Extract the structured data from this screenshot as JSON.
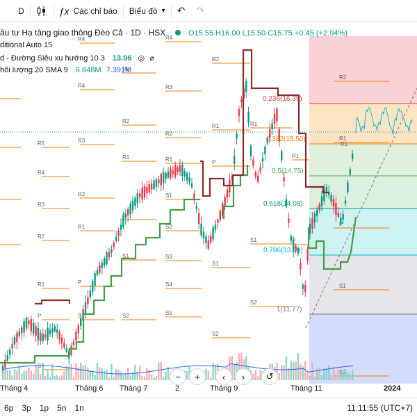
{
  "toolbar": {
    "interval": "D",
    "indicators_label": "Các chỉ báo",
    "chart_type_label": "Biểu đồ"
  },
  "legend": {
    "title": "ầu tư Hạ tầng giao thông Đèo Cả · 1D · HSX",
    "ohlc": "O15.55 H16.00 L15.50 C15.75",
    "change": "+0.45 (+2.94%)",
    "subtitle": "ditional Auto 15",
    "supertrend_label": "d - Đường Siêu xu hướng 10 3",
    "supertrend_value": "13.96",
    "volume_label": "hối lượng 20 SMA 9",
    "volume_value_a": "6.848M",
    "volume_value_b": "7.391M"
  },
  "fib_levels": [
    {
      "label": "0.236(16.39)"
    },
    {
      "label": "0.382(15.50)"
    },
    {
      "label": "0.5(14.75)"
    },
    {
      "label": "0.618(14.08)"
    },
    {
      "label": "0.786(13.09)"
    },
    {
      "label": "1(11.77)"
    }
  ],
  "pivot_labels": [
    "R4",
    "R3",
    "R2",
    "R1",
    "P",
    "S1",
    "S2",
    "S3",
    "S4",
    "S5"
  ],
  "time_axis": [
    {
      "label": "Tháng 4"
    },
    {
      "label": "Tháng 6"
    },
    {
      "label": "Tháng 7"
    },
    {
      "label": "2"
    },
    {
      "label": "Tháng 9"
    },
    {
      "label": "Tháng 11"
    },
    {
      "label": "2024",
      "year": true
    }
  ],
  "bottom": {
    "ranges": [
      "6p",
      "3p",
      "1p",
      "5n",
      "1n"
    ],
    "clock": "11:11:55 (UTC+7)"
  },
  "colors": {
    "up": "#089981",
    "down": "#f23645",
    "supertrend_up": "#43a047",
    "supertrend_down": "#8d2a2a",
    "pivot": "#f57c00",
    "accent": "#2962ff"
  },
  "controls": {
    "zoom_out": "−",
    "zoom_in": "+",
    "prev": "‹",
    "next": "›",
    "reset": "↺"
  }
}
